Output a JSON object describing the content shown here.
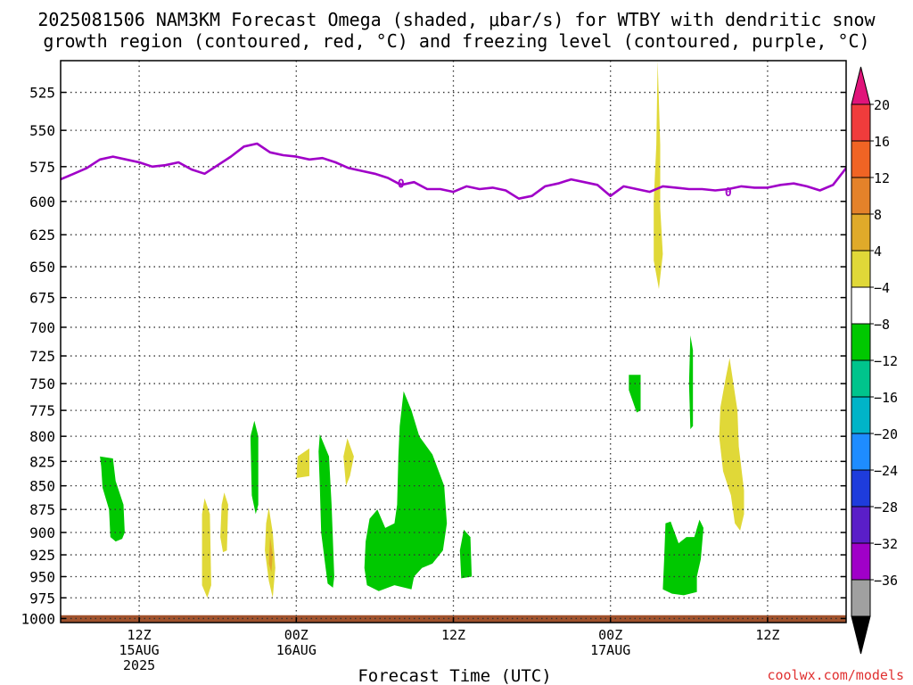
{
  "title_line1": "2025081506 NAM3KM Forecast Omega (shaded, μbar/s) for WTBY with dendritic snow",
  "title_line2": "growth region (contoured, red, °C) and freezing level (contoured, purple, °C)",
  "credit": "coolwx.com/models",
  "chart_data": {
    "type": "heatmap",
    "xlabel": "Forecast Time (UTC)",
    "x_ticks": [
      {
        "hour": 6,
        "label": "12Z",
        "date": "15AUG",
        "year": "2025"
      },
      {
        "hour": 18,
        "label": "00Z",
        "date": "16AUG",
        "year": ""
      },
      {
        "hour": 30,
        "label": "12Z",
        "date": "",
        "year": ""
      },
      {
        "hour": 42,
        "label": "00Z",
        "date": "17AUG",
        "year": ""
      },
      {
        "hour": 54,
        "label": "12Z",
        "date": "",
        "year": ""
      }
    ],
    "x_range_hours": [
      0,
      60
    ],
    "y_ticks": [
      525,
      550,
      575,
      600,
      625,
      650,
      675,
      700,
      725,
      750,
      775,
      800,
      825,
      850,
      875,
      900,
      925,
      950,
      975,
      1000
    ],
    "y_range_hPa": [
      505,
      1005
    ],
    "grid": "dotted",
    "colorbar": {
      "ticks": [
        "20",
        "16",
        "12",
        "8",
        "4",
        "−4",
        "−8",
        "−12",
        "−16",
        "−20",
        "−24",
        "−28",
        "−32",
        "−36"
      ],
      "colors": [
        "#f03c3c",
        "#f06424",
        "#e4822a",
        "#e0aa2a",
        "#e0d838",
        "#ffffff",
        "#00c800",
        "#00c48c",
        "#00b4c8",
        "#1e8cff",
        "#1e3cdc",
        "#5a1ec8",
        "#a000c8",
        "#a0a0a0"
      ],
      "top_arrow_color": "#e0147a",
      "bottom_arrow_color": "#000000"
    },
    "freezing_level": {
      "color": "#a000c8",
      "label": "0",
      "points": [
        [
          0,
          584
        ],
        [
          1,
          580
        ],
        [
          2,
          576
        ],
        [
          3,
          570
        ],
        [
          4,
          568
        ],
        [
          5,
          570
        ],
        [
          6,
          572
        ],
        [
          7,
          575
        ],
        [
          8,
          574
        ],
        [
          9,
          572
        ],
        [
          10,
          577
        ],
        [
          11,
          580
        ],
        [
          12,
          574
        ],
        [
          13,
          568
        ],
        [
          14,
          561
        ],
        [
          15,
          559
        ],
        [
          16,
          565
        ],
        [
          17,
          567
        ],
        [
          18,
          568
        ],
        [
          19,
          570
        ],
        [
          20,
          569
        ],
        [
          21,
          572
        ],
        [
          22,
          576
        ],
        [
          23,
          578
        ],
        [
          24,
          580
        ],
        [
          25,
          583
        ],
        [
          26,
          588
        ],
        [
          27,
          586
        ],
        [
          28,
          591
        ],
        [
          29,
          591
        ],
        [
          30,
          593
        ],
        [
          31,
          589
        ],
        [
          32,
          591
        ],
        [
          33,
          590
        ],
        [
          34,
          592
        ],
        [
          35,
          598
        ],
        [
          36,
          596
        ],
        [
          37,
          589
        ],
        [
          38,
          587
        ],
        [
          39,
          584
        ],
        [
          40,
          586
        ],
        [
          41,
          588
        ],
        [
          42,
          596
        ],
        [
          43,
          589
        ],
        [
          44,
          591
        ],
        [
          45,
          593
        ],
        [
          46,
          589
        ],
        [
          47,
          590
        ],
        [
          48,
          591
        ],
        [
          49,
          591
        ],
        [
          50,
          592
        ],
        [
          51,
          591
        ],
        [
          52,
          589
        ],
        [
          53,
          590
        ],
        [
          54,
          590
        ],
        [
          55,
          588
        ],
        [
          56,
          587
        ],
        [
          57,
          589
        ],
        [
          58,
          592
        ],
        [
          59,
          588
        ],
        [
          60,
          576
        ]
      ],
      "label_positions": [
        [
          26,
          587
        ],
        [
          51,
          593
        ]
      ]
    },
    "omega_areas": [
      {
        "level": "-4 to -8",
        "color": "#00c800",
        "points": [
          [
            3,
            820
          ],
          [
            4,
            822
          ],
          [
            4.2,
            845
          ],
          [
            4.8,
            870
          ],
          [
            4.9,
            900
          ],
          [
            4.7,
            907
          ],
          [
            4.2,
            910
          ],
          [
            3.8,
            905
          ],
          [
            3.7,
            875
          ],
          [
            3.2,
            852
          ],
          [
            3.1,
            830
          ]
        ]
      },
      {
        "level": "4 to 8",
        "color": "#e0d838",
        "points": [
          [
            11.0,
            863
          ],
          [
            11.4,
            880
          ],
          [
            11.5,
            960
          ],
          [
            11.2,
            975
          ],
          [
            10.8,
            960
          ],
          [
            10.8,
            880
          ]
        ]
      },
      {
        "level": "4 to 8",
        "color": "#e0d838",
        "points": [
          [
            12.5,
            857
          ],
          [
            12.8,
            870
          ],
          [
            12.7,
            920
          ],
          [
            12.4,
            922
          ],
          [
            12.2,
            905
          ],
          [
            12.3,
            870
          ]
        ]
      },
      {
        "level": "-4 to -8",
        "color": "#00c800",
        "points": [
          [
            14.8,
            785
          ],
          [
            15.1,
            800
          ],
          [
            15.1,
            870
          ],
          [
            14.9,
            880
          ],
          [
            14.6,
            860
          ],
          [
            14.5,
            800
          ]
        ]
      },
      {
        "level": "4 to 8",
        "color": "#e0d838",
        "points": [
          [
            15.9,
            873
          ],
          [
            16.2,
            900
          ],
          [
            16.4,
            940
          ],
          [
            16.2,
            975
          ],
          [
            15.9,
            955
          ],
          [
            15.6,
            920
          ],
          [
            15.7,
            890
          ]
        ]
      },
      {
        "level": "8 to 12",
        "color": "#e0aa2a",
        "points": [
          [
            16.0,
            905
          ],
          [
            16.2,
            925
          ],
          [
            16.1,
            945
          ],
          [
            15.9,
            935
          ]
        ]
      },
      {
        "level": "4 to 8",
        "color": "#e0d838",
        "points": [
          [
            18.1,
            820
          ],
          [
            19.0,
            812
          ],
          [
            19.0,
            840
          ],
          [
            18.0,
            842
          ]
        ]
      },
      {
        "level": "-4 to -8",
        "color": "#00c800",
        "points": [
          [
            19.8,
            798
          ],
          [
            20.5,
            820
          ],
          [
            20.7,
            870
          ],
          [
            20.9,
            950
          ],
          [
            20.8,
            963
          ],
          [
            20.4,
            958
          ],
          [
            20.2,
            935
          ],
          [
            19.9,
            900
          ],
          [
            19.8,
            850
          ],
          [
            19.7,
            815
          ]
        ]
      },
      {
        "level": "4 to 8",
        "color": "#e0d838",
        "points": [
          [
            21.9,
            802
          ],
          [
            22.4,
            820
          ],
          [
            22.1,
            840
          ],
          [
            21.8,
            850
          ],
          [
            21.6,
            820
          ]
        ]
      },
      {
        "level": "-4 to -8",
        "color": "#00c800",
        "points": [
          [
            26.2,
            757
          ],
          [
            26.8,
            775
          ],
          [
            27.4,
            800
          ],
          [
            28.4,
            818
          ],
          [
            29.3,
            850
          ],
          [
            29.5,
            890
          ],
          [
            29.2,
            920
          ],
          [
            28.4,
            935
          ],
          [
            27.6,
            940
          ],
          [
            27.0,
            950
          ],
          [
            26.8,
            965
          ],
          [
            25.5,
            960
          ],
          [
            24.3,
            967
          ],
          [
            23.4,
            960
          ],
          [
            23.2,
            940
          ],
          [
            23.3,
            910
          ],
          [
            23.6,
            885
          ],
          [
            24.2,
            875
          ],
          [
            24.8,
            895
          ],
          [
            25.5,
            890
          ],
          [
            25.7,
            870
          ],
          [
            25.8,
            820
          ],
          [
            25.9,
            790
          ]
        ]
      },
      {
        "level": "-4 to -8",
        "color": "#00c800",
        "points": [
          [
            30.8,
            897
          ],
          [
            31.3,
            905
          ],
          [
            31.4,
            950
          ],
          [
            30.6,
            952
          ],
          [
            30.5,
            920
          ]
        ]
      },
      {
        "level": "4 to 8",
        "color": "#e0d838",
        "points": [
          [
            45.6,
            505
          ],
          [
            45.8,
            560
          ],
          [
            45.8,
            605
          ],
          [
            46.0,
            640
          ],
          [
            45.7,
            668
          ],
          [
            45.3,
            645
          ],
          [
            45.3,
            600
          ],
          [
            45.5,
            560
          ]
        ]
      },
      {
        "level": "-4 to -8",
        "color": "#00c800",
        "points": [
          [
            43.4,
            742
          ],
          [
            44.3,
            742
          ],
          [
            44.3,
            775
          ],
          [
            44.0,
            777
          ],
          [
            43.4,
            756
          ]
        ]
      },
      {
        "level": "-4 to -8",
        "color": "#00c800",
        "points": [
          [
            48.1,
            707
          ],
          [
            48.3,
            720
          ],
          [
            48.3,
            790
          ],
          [
            48.1,
            793
          ],
          [
            48.0,
            750
          ]
        ]
      },
      {
        "level": "4 to 8",
        "color": "#e0d838",
        "points": [
          [
            51.1,
            727
          ],
          [
            51.7,
            775
          ],
          [
            51.8,
            810
          ],
          [
            52.2,
            855
          ],
          [
            52.2,
            880
          ],
          [
            51.9,
            898
          ],
          [
            51.5,
            890
          ],
          [
            51.2,
            860
          ],
          [
            50.6,
            835
          ],
          [
            50.3,
            800
          ],
          [
            50.4,
            772
          ],
          [
            50.8,
            745
          ]
        ]
      },
      {
        "level": "-4 to -8",
        "color": "#00c800",
        "points": [
          [
            46.2,
            890
          ],
          [
            46.6,
            888
          ],
          [
            47.2,
            912
          ],
          [
            47.8,
            905
          ],
          [
            48.4,
            905
          ],
          [
            48.8,
            886
          ],
          [
            49.1,
            895
          ],
          [
            48.9,
            930
          ],
          [
            48.6,
            950
          ],
          [
            48.6,
            968
          ],
          [
            47.6,
            972
          ],
          [
            46.7,
            970
          ],
          [
            46.0,
            965
          ],
          [
            46.1,
            930
          ]
        ]
      }
    ],
    "terrain": {
      "color": "#a0522d",
      "top_hPa": 996
    }
  }
}
